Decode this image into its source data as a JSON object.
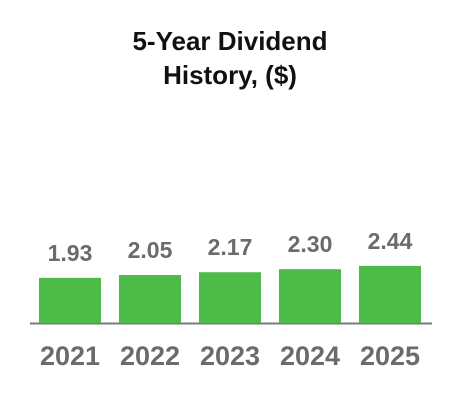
{
  "chart_data": {
    "type": "bar",
    "title": "5-Year Dividend History, ($)",
    "categories": [
      "2021",
      "2022",
      "2023",
      "2024",
      "2025"
    ],
    "values": [
      1.93,
      2.05,
      2.17,
      2.3,
      2.44
    ],
    "value_labels": [
      "1.93",
      "2.05",
      "2.17",
      "2.30",
      "2.44"
    ],
    "color": "#4cbb47"
  }
}
